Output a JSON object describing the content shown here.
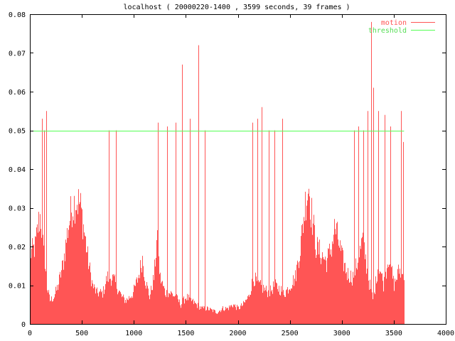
{
  "chart_data": {
    "type": "area",
    "title": "localhost ( 20000220-1400 , 3599 seconds, 39 frames )",
    "xlabel": "",
    "ylabel": "",
    "xlim": [
      0,
      4000
    ],
    "ylim": [
      0,
      0.08
    ],
    "x_ticks": [
      0,
      500,
      1000,
      1500,
      2000,
      2500,
      3000,
      3500,
      4000
    ],
    "y_ticks": [
      0,
      0.01,
      0.02,
      0.03,
      0.04,
      0.05,
      0.06,
      0.07,
      0.08
    ],
    "x_tick_labels": [
      "0",
      "500",
      "1000",
      "1500",
      "2000",
      "2500",
      "3000",
      "3500",
      "4000"
    ],
    "y_tick_labels": [
      "0",
      "0.01",
      "0.02",
      "0.03",
      "0.04",
      "0.05",
      "0.06",
      "0.07",
      "0.08"
    ],
    "grid": false,
    "legend_position": "top-right",
    "series": [
      {
        "name": "motion",
        "color": "#ff5555",
        "style": "impulses",
        "x_end": 3599,
        "envelope": [
          [
            0,
            0.018
          ],
          [
            50,
            0.02
          ],
          [
            80,
            0.026
          ],
          [
            100,
            0.028
          ],
          [
            130,
            0.018
          ],
          [
            160,
            0.01
          ],
          [
            190,
            0.006
          ],
          [
            230,
            0.007
          ],
          [
            270,
            0.01
          ],
          [
            320,
            0.016
          ],
          [
            360,
            0.024
          ],
          [
            400,
            0.03
          ],
          [
            440,
            0.032
          ],
          [
            480,
            0.031
          ],
          [
            520,
            0.024
          ],
          [
            560,
            0.016
          ],
          [
            600,
            0.01
          ],
          [
            640,
            0.008
          ],
          [
            700,
            0.008
          ],
          [
            740,
            0.012
          ],
          [
            790,
            0.012
          ],
          [
            830,
            0.01
          ],
          [
            880,
            0.007
          ],
          [
            920,
            0.006
          ],
          [
            960,
            0.007
          ],
          [
            990,
            0.008
          ],
          [
            1040,
            0.012
          ],
          [
            1080,
            0.017
          ],
          [
            1110,
            0.011
          ],
          [
            1150,
            0.007
          ],
          [
            1190,
            0.012
          ],
          [
            1220,
            0.022
          ],
          [
            1250,
            0.012
          ],
          [
            1300,
            0.008
          ],
          [
            1350,
            0.008
          ],
          [
            1400,
            0.007
          ],
          [
            1450,
            0.005
          ],
          [
            1500,
            0.007
          ],
          [
            1550,
            0.006
          ],
          [
            1600,
            0.005
          ],
          [
            1650,
            0.004
          ],
          [
            1700,
            0.004
          ],
          [
            1800,
            0.003
          ],
          [
            1850,
            0.004
          ],
          [
            1900,
            0.004
          ],
          [
            1950,
            0.005
          ],
          [
            2000,
            0.004
          ],
          [
            2050,
            0.005
          ],
          [
            2100,
            0.007
          ],
          [
            2150,
            0.012
          ],
          [
            2200,
            0.01
          ],
          [
            2250,
            0.009
          ],
          [
            2300,
            0.008
          ],
          [
            2350,
            0.01
          ],
          [
            2400,
            0.009
          ],
          [
            2450,
            0.008
          ],
          [
            2500,
            0.01
          ],
          [
            2550,
            0.012
          ],
          [
            2600,
            0.02
          ],
          [
            2650,
            0.032
          ],
          [
            2680,
            0.036
          ],
          [
            2700,
            0.03
          ],
          [
            2750,
            0.02
          ],
          [
            2800,
            0.018
          ],
          [
            2850,
            0.016
          ],
          [
            2900,
            0.02
          ],
          [
            2930,
            0.025
          ],
          [
            2960,
            0.022
          ],
          [
            3000,
            0.017
          ],
          [
            3050,
            0.013
          ],
          [
            3100,
            0.012
          ],
          [
            3150,
            0.016
          ],
          [
            3200,
            0.022
          ],
          [
            3250,
            0.012
          ],
          [
            3300,
            0.006
          ],
          [
            3350,
            0.016
          ],
          [
            3400,
            0.01
          ],
          [
            3450,
            0.018
          ],
          [
            3500,
            0.01
          ],
          [
            3550,
            0.014
          ],
          [
            3599,
            0.012
          ]
        ],
        "spikes": [
          [
            115,
            0.053
          ],
          [
            140,
            0.05
          ],
          [
            158,
            0.055
          ],
          [
            760,
            0.05
          ],
          [
            830,
            0.05
          ],
          [
            1230,
            0.052
          ],
          [
            1320,
            0.051
          ],
          [
            1400,
            0.052
          ],
          [
            1460,
            0.067
          ],
          [
            1540,
            0.053
          ],
          [
            1620,
            0.072
          ],
          [
            1680,
            0.05
          ],
          [
            2140,
            0.052
          ],
          [
            2190,
            0.053
          ],
          [
            2230,
            0.056
          ],
          [
            2300,
            0.05
          ],
          [
            2350,
            0.05
          ],
          [
            2430,
            0.053
          ],
          [
            3120,
            0.05
          ],
          [
            3160,
            0.051
          ],
          [
            3210,
            0.05
          ],
          [
            3250,
            0.055
          ],
          [
            3280,
            0.078
          ],
          [
            3300,
            0.061
          ],
          [
            3350,
            0.055
          ],
          [
            3410,
            0.054
          ],
          [
            3470,
            0.051
          ],
          [
            3570,
            0.055
          ],
          [
            3590,
            0.047
          ]
        ]
      },
      {
        "name": "threshold",
        "color": "#55ff55",
        "style": "line",
        "x": [
          0,
          3599
        ],
        "values": [
          0.05,
          0.05
        ]
      }
    ]
  }
}
